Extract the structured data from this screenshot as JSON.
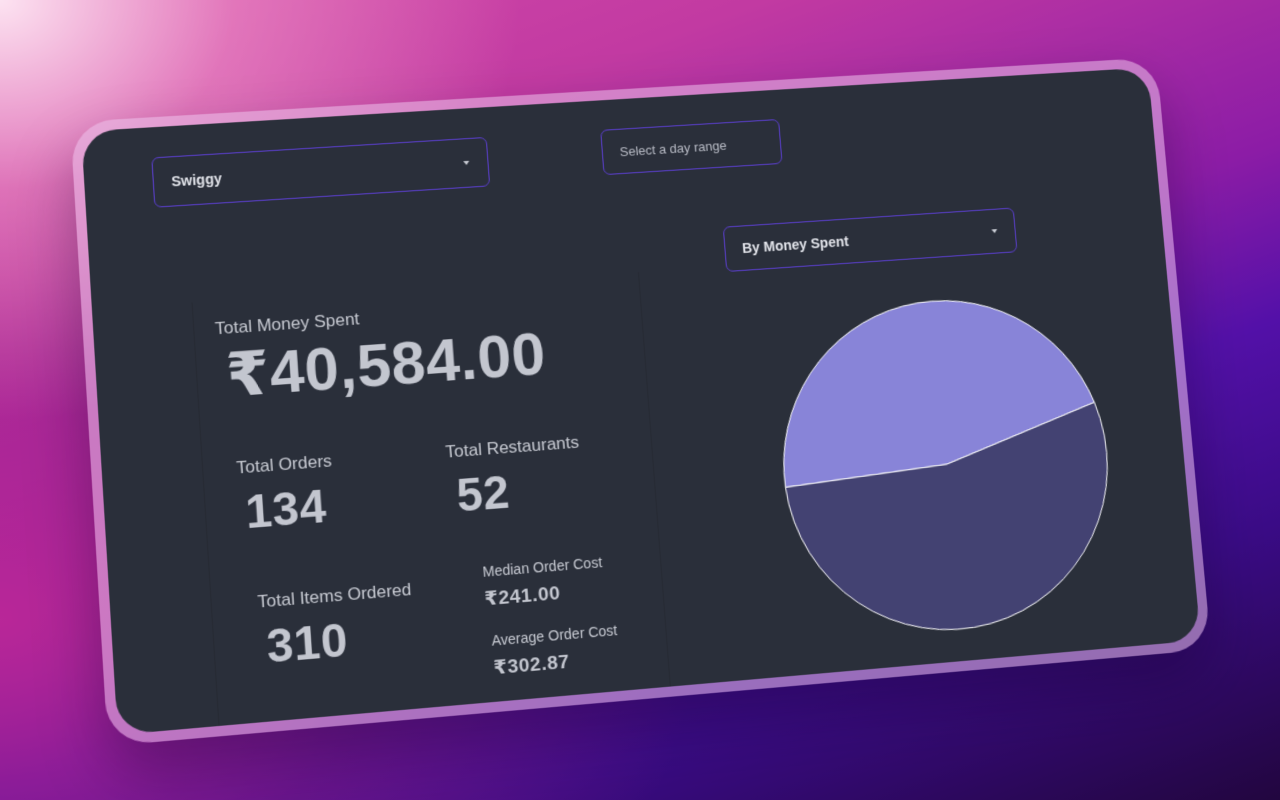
{
  "filters": {
    "platform": "Swiggy",
    "day_range_placeholder": "Select a day range",
    "chart_metric": "By Money Spent"
  },
  "stats": {
    "total_money_label": "Total Money Spent",
    "total_money_value": "₹40,584.00",
    "total_orders_label": "Total Orders",
    "total_orders_value": "134",
    "total_restaurants_label": "Total Restaurants",
    "total_restaurants_value": "52",
    "total_items_label": "Total Items Ordered",
    "total_items_value": "310",
    "median_label": "Median Order Cost",
    "median_value": "₹241.00",
    "average_label": "Average Order Cost",
    "average_value": "₹302.87"
  },
  "colors": {
    "slice_light": "#8884d8",
    "slice_dark": "#434272",
    "stroke": "#ffffff",
    "accent_border": "#5b3fd0"
  },
  "chart_data": {
    "type": "pie",
    "title": "",
    "slices": [
      {
        "value": 46
      },
      {
        "value": 54
      }
    ]
  }
}
